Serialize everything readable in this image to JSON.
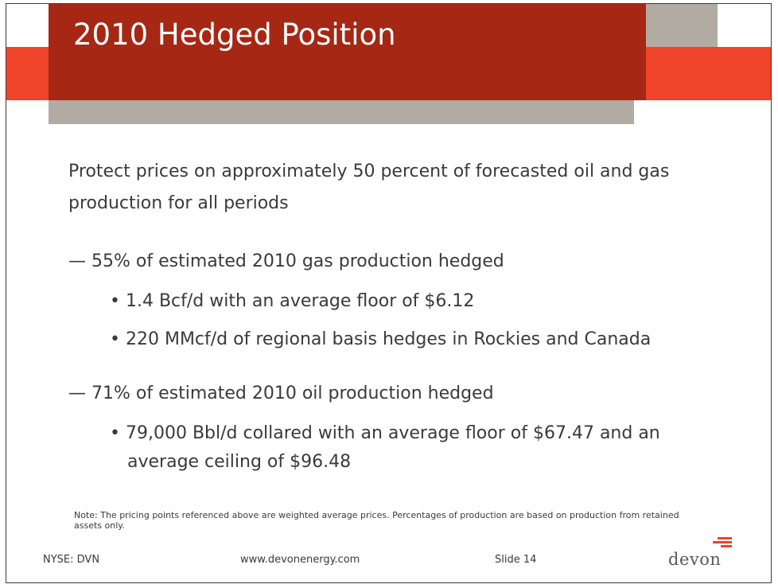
{
  "slide": {
    "title": "2010 Hedged Position",
    "intro": "Protect prices on approximately 50 percent of forecasted oil and gas production for all periods",
    "sections": [
      {
        "dash": "—",
        "heading": "55% of estimated 2010 gas production hedged",
        "bullets": [
          "1.4 Bcf/d with an average floor of $6.12",
          "220 MMcf/d of regional basis hedges in Rockies and Canada"
        ]
      },
      {
        "dash": "—",
        "heading": "71% of estimated 2010 oil production hedged",
        "bullets": [
          "79,000 Bbl/d collared with an average floor of $67.47 and an average ceiling of $96.48"
        ]
      }
    ],
    "bullet_char": "•",
    "note": "Note: The pricing points referenced above are weighted average prices.  Percentages of production are based on production from retained assets only."
  },
  "footer": {
    "ticker": "NYSE: DVN",
    "website": "www.devonenergy.com",
    "slide_number": "Slide 14",
    "logo_text": "devon"
  },
  "colors": {
    "title_red": "#a52714",
    "accent_orange": "#f0442a",
    "bar_gray": "#b2aba4",
    "text": "#3a3a3a"
  }
}
